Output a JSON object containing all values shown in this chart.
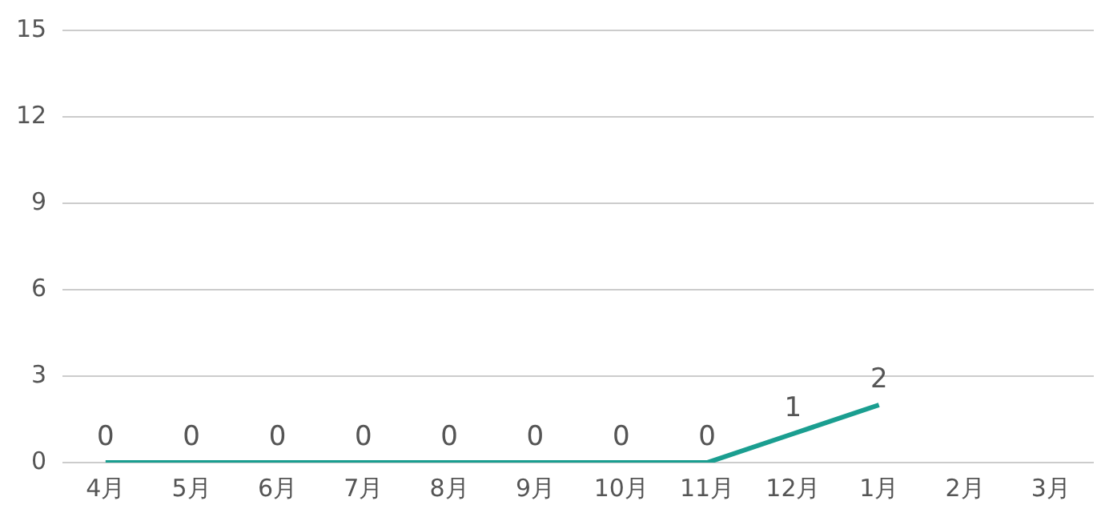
{
  "chart_data": {
    "type": "line",
    "categories": [
      "4月",
      "5月",
      "6月",
      "7月",
      "8月",
      "9月",
      "10月",
      "11月",
      "12月",
      "1月",
      "2月",
      "3月"
    ],
    "series": [
      {
        "color": "#1a9e90",
        "values": [
          0,
          0,
          0,
          0,
          0,
          0,
          0,
          0,
          1,
          2,
          null,
          null
        ]
      }
    ],
    "ylim": [
      0,
      15
    ],
    "yticks": [
      0,
      3,
      6,
      9,
      12,
      15
    ],
    "grid": "y",
    "legend": false,
    "marker": "none",
    "line_style": "solid",
    "data_labels": true
  }
}
